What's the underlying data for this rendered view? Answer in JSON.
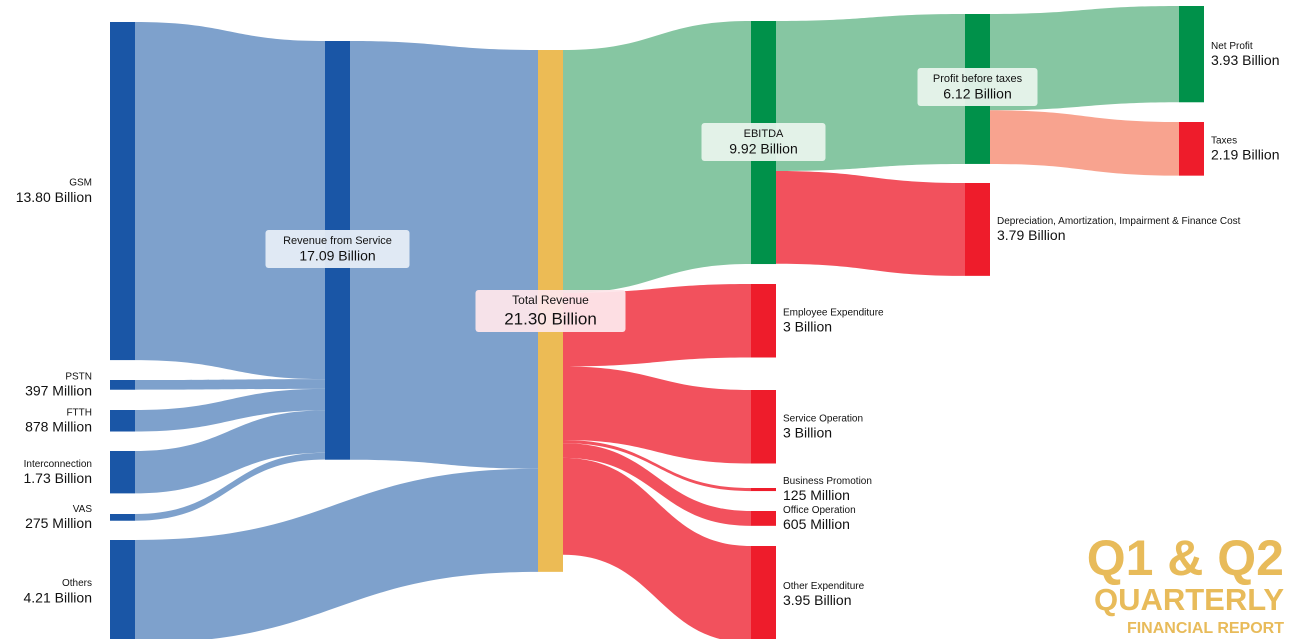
{
  "chart_data": {
    "type": "sankey",
    "nodes": {
      "names": [
        "GSM",
        "PSTN",
        "FTTH",
        "Interconnection",
        "VAS",
        "Others",
        "Revenue from Service",
        "Total Revenue",
        "EBITDA",
        "Employee Expenditure",
        "Service Operation",
        "Business Promotion",
        "Office Operation",
        "Other Expenditure",
        "Profit before taxes",
        "Depreciation, Amortization, Impairment & Finance Cost",
        "Net Profit",
        "Taxes"
      ],
      "values": [
        13800,
        397,
        878,
        1730,
        275,
        4210,
        17090,
        21300,
        9920,
        3000,
        3000,
        125,
        605,
        3950,
        6120,
        3790,
        3930,
        2190
      ],
      "value_labels": [
        "13.80 Billion",
        "397 Million",
        "878 Million",
        "1.73 Billion",
        "275 Million",
        "4.21 Billion",
        "17.09 Billion",
        "21.30 Billion",
        "9.92 Billion",
        "3 Billion",
        "3 Billion",
        "125 Million",
        "605 Million",
        "3.95 Billion",
        "6.12 Billion",
        "3.79 Billion",
        "3.93 Billion",
        "2.19 Billion"
      ],
      "colors": [
        "#1a56a6",
        "#1a56a6",
        "#1a56a6",
        "#1a56a6",
        "#1a56a6",
        "#1a56a6",
        "#1a56a6",
        "#ecbb55",
        "#00914a",
        "#ee1c2b",
        "#ee1c2b",
        "#ee1c2b",
        "#ee1c2b",
        "#ee1c2b",
        "#00914a",
        "#ee1c2b",
        "#00914a",
        "#ee1c2b"
      ]
    },
    "links": {
      "source": [
        "GSM",
        "PSTN",
        "FTTH",
        "Interconnection",
        "VAS",
        "Revenue from Service",
        "Others",
        "Total Revenue",
        "Total Revenue",
        "Total Revenue",
        "Total Revenue",
        "Total Revenue",
        "Total Revenue",
        "EBITDA",
        "EBITDA",
        "Profit before taxes",
        "Profit before taxes"
      ],
      "target": [
        "Revenue from Service",
        "Revenue from Service",
        "Revenue from Service",
        "Revenue from Service",
        "Revenue from Service",
        "Total Revenue",
        "Total Revenue",
        "EBITDA",
        "Employee Expenditure",
        "Service Operation",
        "Business Promotion",
        "Office Operation",
        "Other Expenditure",
        "Profit before taxes",
        "Depreciation, Amortization, Impairment & Finance Cost",
        "Net Profit",
        "Taxes"
      ],
      "values": [
        13800,
        397,
        878,
        1730,
        275,
        17090,
        4210,
        9920,
        3000,
        3000,
        125,
        605,
        3950,
        6120,
        3790,
        3930,
        2190
      ],
      "colors": [
        "#7ea1cc",
        "#7ea1cc",
        "#7ea1cc",
        "#7ea1cc",
        "#7ea1cc",
        "#7ea1cc",
        "#7ea1cc",
        "#86c6a2",
        "#f2515d",
        "#f2515d",
        "#f2515d",
        "#f2515d",
        "#f2515d",
        "#86c6a2",
        "#f2515d",
        "#86c6a2",
        "#f8a38f"
      ]
    },
    "annotation": [
      "Q1 & Q2",
      "QUARTERLY",
      "FINANCIAL REPORT"
    ]
  }
}
